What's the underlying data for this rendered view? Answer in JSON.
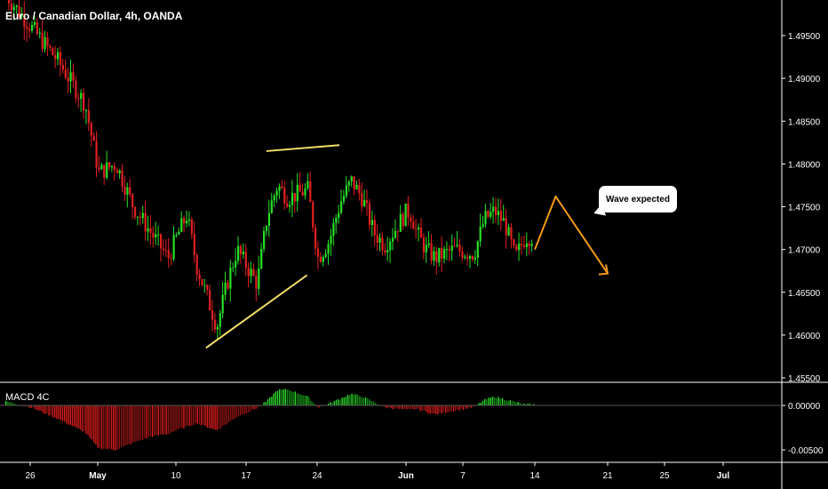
{
  "chart_title": "Euro / Canadian Dollar, 4h, OANDA",
  "colors": {
    "up": "#26e026",
    "down": "#e02020",
    "trendline": "#f5e06a",
    "projection": "#f29a1d",
    "macd_up": "#1fbf1f",
    "macd_down": "#c91a1a",
    "background": "#000000"
  },
  "chart_data": [
    {
      "type": "candlestick",
      "title": "Euro / Canadian Dollar, 4h, OANDA",
      "x_ticks": [
        "26",
        "May",
        "10",
        "17",
        "24",
        "Jun",
        "7",
        "14",
        "21",
        "25",
        "Jul"
      ],
      "y_ticks": [
        "1.49500",
        "1.49000",
        "1.48500",
        "1.48000",
        "1.47500",
        "1.47000",
        "1.46500",
        "1.46000",
        "1.45500"
      ],
      "ylim": [
        1.4555,
        1.4995
      ],
      "grid": false,
      "approximate_path": [
        {
          "x": "24",
          "y": 1.5
        },
        {
          "x": "26",
          "y": 1.496
        },
        {
          "x": "28",
          "y": 1.492
        },
        {
          "x": "30",
          "y": 1.487
        },
        {
          "x": "May 1",
          "y": 1.479
        },
        {
          "x": "May 3",
          "y": 1.48
        },
        {
          "x": "May 5",
          "y": 1.475
        },
        {
          "x": "May 7",
          "y": 1.472
        },
        {
          "x": "May 9",
          "y": 1.469
        },
        {
          "x": "10",
          "y": 1.474
        },
        {
          "x": "11",
          "y": 1.468
        },
        {
          "x": "13",
          "y": 1.461
        },
        {
          "x": "14",
          "y": 1.466
        },
        {
          "x": "15",
          "y": 1.47
        },
        {
          "x": "17",
          "y": 1.466
        },
        {
          "x": "18",
          "y": 1.474
        },
        {
          "x": "19",
          "y": 1.4775
        },
        {
          "x": "20",
          "y": 1.476
        },
        {
          "x": "22",
          "y": 1.477
        },
        {
          "x": "23",
          "y": 1.469
        },
        {
          "x": "24",
          "y": 1.471
        },
        {
          "x": "25",
          "y": 1.4755
        },
        {
          "x": "26",
          "y": 1.478
        },
        {
          "x": "27",
          "y": 1.476
        },
        {
          "x": "28",
          "y": 1.472
        },
        {
          "x": "29",
          "y": 1.4705
        },
        {
          "x": "31",
          "y": 1.4745
        },
        {
          "x": "Jun 1",
          "y": 1.474
        },
        {
          "x": "Jun 2",
          "y": 1.472
        },
        {
          "x": "Jun 3",
          "y": 1.47
        },
        {
          "x": "Jun 4",
          "y": 1.469
        },
        {
          "x": "Jun 6",
          "y": 1.47
        },
        {
          "x": "7",
          "y": 1.4695
        },
        {
          "x": "Jun 9",
          "y": 1.4735
        },
        {
          "x": "Jun 10",
          "y": 1.4745
        },
        {
          "x": "Jun 11",
          "y": 1.473
        },
        {
          "x": "Jun 12",
          "y": 1.469
        },
        {
          "x": "Jun 13",
          "y": 1.4715
        }
      ],
      "annotations": {
        "trendline_upper": [
          {
            "x": "May 19",
            "y": 1.4815
          },
          {
            "x": "May 26",
            "y": 1.4822
          }
        ],
        "trendline_lower": [
          {
            "x": "May 13",
            "y": 1.4585
          },
          {
            "x": "May 23",
            "y": 1.467
          }
        ],
        "projection": [
          {
            "x": "Jun 14",
            "y": 1.47
          },
          {
            "x": "Jun 16",
            "y": 1.4762
          },
          {
            "x": "Jun 21",
            "y": 1.4672
          }
        ],
        "callout_text": "Wave expected"
      }
    },
    {
      "type": "bar",
      "title": "MACD 4C",
      "y_ticks": [
        "0.00000",
        "-0.00500"
      ],
      "zero_level": 0.0,
      "approximate_path": [
        {
          "x": "24",
          "y": 0.0005
        },
        {
          "x": "26",
          "y": -0.0002
        },
        {
          "x": "28",
          "y": -0.0015
        },
        {
          "x": "30",
          "y": -0.003
        },
        {
          "x": "May 1",
          "y": -0.0048
        },
        {
          "x": "May 3",
          "y": -0.005
        },
        {
          "x": "May 5",
          "y": -0.0042
        },
        {
          "x": "May 7",
          "y": -0.0035
        },
        {
          "x": "May 9",
          "y": -0.0032
        },
        {
          "x": "11",
          "y": -0.002
        },
        {
          "x": "13",
          "y": -0.0028
        },
        {
          "x": "15",
          "y": -0.0013
        },
        {
          "x": "17",
          "y": -0.0003
        },
        {
          "x": "18",
          "y": 0.0005
        },
        {
          "x": "19",
          "y": 0.0017
        },
        {
          "x": "20",
          "y": 0.0018
        },
        {
          "x": "22",
          "y": 0.001
        },
        {
          "x": "23",
          "y": -0.0002
        },
        {
          "x": "24",
          "y": 0.0002
        },
        {
          "x": "26",
          "y": 0.0013
        },
        {
          "x": "27",
          "y": 0.001
        },
        {
          "x": "29",
          "y": -0.0002
        },
        {
          "x": "31",
          "y": -0.0005
        },
        {
          "x": "Jun 2",
          "y": -0.0004
        },
        {
          "x": "Jun 4",
          "y": -0.001
        },
        {
          "x": "Jun 6",
          "y": -0.0006
        },
        {
          "x": "Jun 8",
          "y": -0.0002
        },
        {
          "x": "Jun 9",
          "y": 0.0006
        },
        {
          "x": "Jun 10",
          "y": 0.001
        },
        {
          "x": "Jun 12",
          "y": 0.0004
        },
        {
          "x": "Jun 13",
          "y": 0.0001
        }
      ]
    }
  ]
}
